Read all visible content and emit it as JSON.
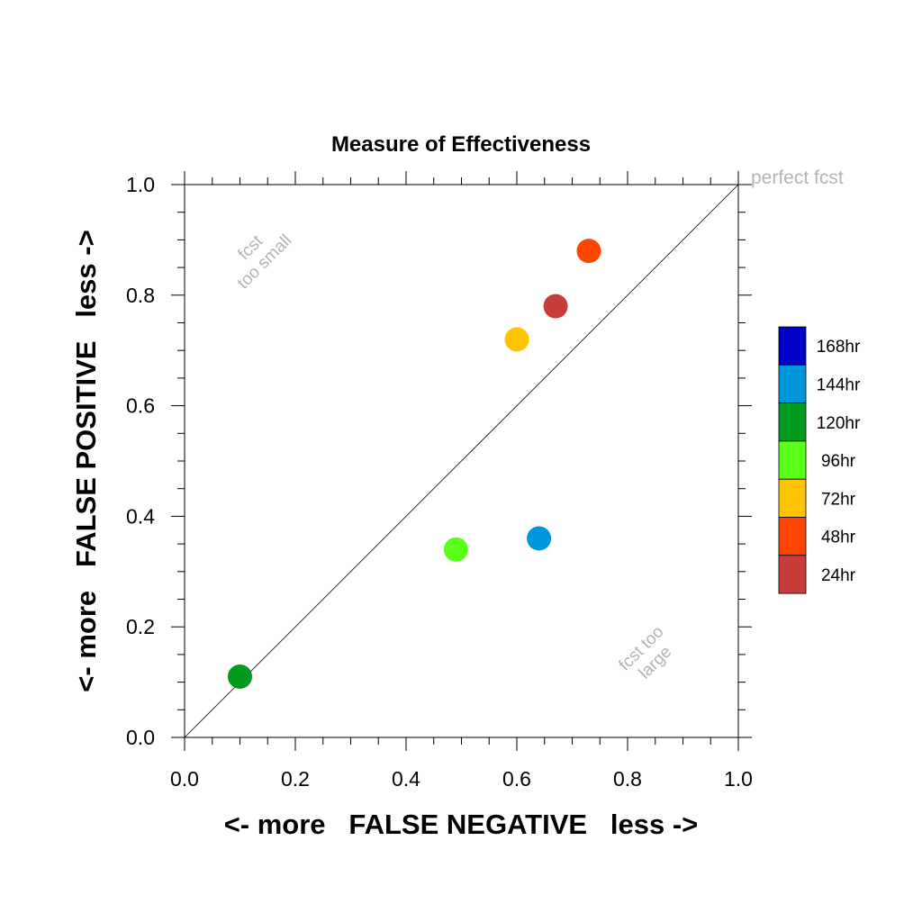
{
  "chart_data": {
    "type": "scatter",
    "title": "Measure of Effectiveness",
    "xlabel": "<- more   FALSE NEGATIVE   less ->",
    "ylabel": "<- more   FALSE POSITIVE   less ->",
    "xlim": [
      0.0,
      1.0
    ],
    "ylim": [
      0.0,
      1.0
    ],
    "x_ticks": [
      "0.0",
      "0.2",
      "0.4",
      "0.6",
      "0.8",
      "1.0"
    ],
    "y_ticks": [
      "0.0",
      "0.2",
      "0.4",
      "0.6",
      "0.8",
      "1.0"
    ],
    "grid": false,
    "reference_line": "diagonal y = x",
    "annotations": {
      "top_right": "perfect fcst",
      "upper_left": [
        "fcst",
        "too small"
      ],
      "lower_right": [
        "fcst too",
        "large"
      ]
    },
    "legend_placement": "right",
    "legend": [
      {
        "label": "168hr",
        "color": "#0000c8"
      },
      {
        "label": "144hr",
        "color": "#0096dc"
      },
      {
        "label": "120hr",
        "color": "#009a1e"
      },
      {
        "label": "96hr",
        "color": "#5aff1a"
      },
      {
        "label": "72hr",
        "color": "#ffc400"
      },
      {
        "label": "48hr",
        "color": "#ff4600"
      },
      {
        "label": "24hr",
        "color": "#c83c3c"
      }
    ],
    "points": [
      {
        "series": "24hr",
        "x": 0.67,
        "y": 0.78
      },
      {
        "series": "48hr",
        "x": 0.73,
        "y": 0.88
      },
      {
        "series": "72hr",
        "x": 0.6,
        "y": 0.72
      },
      {
        "series": "96hr",
        "x": 0.49,
        "y": 0.34
      },
      {
        "series": "120hr",
        "x": 0.1,
        "y": 0.11
      },
      {
        "series": "144hr",
        "x": 0.64,
        "y": 0.36
      }
    ]
  }
}
